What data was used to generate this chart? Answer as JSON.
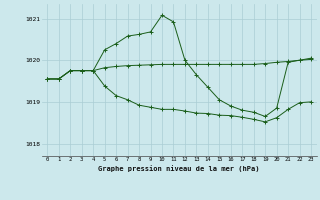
{
  "title": "Graphe pression niveau de la mer (hPa)",
  "bg_color": "#cce8ec",
  "grid_color": "#aacdd4",
  "line_color": "#1a5e1a",
  "x_ticks": [
    0,
    1,
    2,
    3,
    4,
    5,
    6,
    7,
    8,
    9,
    10,
    11,
    12,
    13,
    14,
    15,
    16,
    17,
    18,
    19,
    20,
    21,
    22,
    23
  ],
  "ylim": [
    1017.7,
    1021.35
  ],
  "yticks": [
    1018,
    1019,
    1020,
    1021
  ],
  "line1": {
    "x": [
      0,
      1,
      2,
      3,
      4,
      5,
      6,
      7,
      8,
      9,
      10,
      11,
      12,
      13,
      14,
      15,
      16,
      17,
      18,
      19,
      20,
      21,
      22,
      23
    ],
    "y": [
      1019.55,
      1019.55,
      1019.75,
      1019.75,
      1019.75,
      1019.82,
      1019.85,
      1019.87,
      1019.88,
      1019.89,
      1019.9,
      1019.9,
      1019.9,
      1019.9,
      1019.9,
      1019.9,
      1019.9,
      1019.9,
      1019.9,
      1019.92,
      1019.95,
      1019.97,
      1020.0,
      1020.02
    ]
  },
  "line2": {
    "x": [
      0,
      1,
      2,
      3,
      4,
      5,
      6,
      7,
      8,
      9,
      10,
      11,
      12,
      13,
      14,
      15,
      16,
      17,
      18,
      19,
      20,
      21,
      22,
      23
    ],
    "y": [
      1019.55,
      1019.55,
      1019.75,
      1019.75,
      1019.75,
      1020.25,
      1020.4,
      1020.58,
      1020.62,
      1020.68,
      1021.08,
      1020.92,
      1020.0,
      1019.65,
      1019.35,
      1019.05,
      1018.9,
      1018.8,
      1018.75,
      1018.65,
      1018.85,
      1019.95,
      1020.0,
      1020.05
    ]
  },
  "line3": {
    "x": [
      0,
      1,
      2,
      3,
      4,
      5,
      6,
      7,
      8,
      9,
      10,
      11,
      12,
      13,
      14,
      15,
      16,
      17,
      18,
      19,
      20,
      21,
      22,
      23
    ],
    "y": [
      1019.55,
      1019.55,
      1019.75,
      1019.75,
      1019.75,
      1019.38,
      1019.15,
      1019.05,
      1018.92,
      1018.87,
      1018.82,
      1018.82,
      1018.78,
      1018.73,
      1018.72,
      1018.68,
      1018.67,
      1018.63,
      1018.58,
      1018.52,
      1018.62,
      1018.82,
      1018.98,
      1019.0
    ]
  }
}
